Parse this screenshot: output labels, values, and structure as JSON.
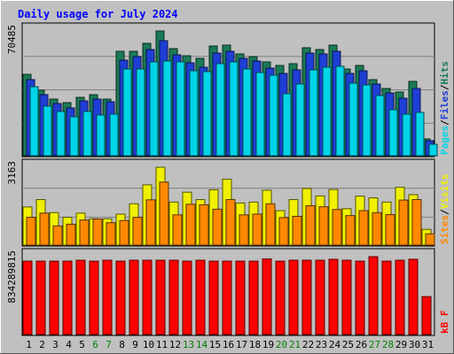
{
  "chart_data": {
    "type": "bar",
    "title": "Daily usage for July 2024",
    "days": [
      "1",
      "2",
      "3",
      "4",
      "5",
      "6",
      "7",
      "8",
      "9",
      "10",
      "11",
      "12",
      "13",
      "14",
      "15",
      "16",
      "17",
      "18",
      "19",
      "20",
      "21",
      "22",
      "23",
      "24",
      "25",
      "26",
      "27",
      "28",
      "29",
      "30",
      "31"
    ],
    "weekend_days": [
      "6",
      "7",
      "13",
      "14",
      "20",
      "21",
      "27",
      "28"
    ],
    "panels": [
      {
        "id": "hits",
        "max_label": "70485",
        "ymax": 70485,
        "legend": [
          "Pages",
          "Files",
          "Hits"
        ],
        "series": [
          {
            "name": "Hits",
            "color": "#1a7a55",
            "values": [
              46000,
              37000,
              32000,
              30000,
              33000,
              34500,
              32000,
              59000,
              59000,
              63500,
              70485,
              60500,
              56500,
              55000,
              62000,
              62500,
              57500,
              56000,
              53000,
              51000,
              52000,
              61000,
              60000,
              62500,
              49000,
              51000,
              43000,
              38000,
              36000,
              42000,
              9500
            ]
          },
          {
            "name": "Files",
            "color": "#1e3ed6",
            "values": [
              43000,
              34500,
              29500,
              27000,
              31000,
              32000,
              30500,
              54000,
              56000,
              60000,
              65000,
              57000,
              52500,
              50000,
              58000,
              59000,
              55000,
              53500,
              49500,
              46500,
              48500,
              58000,
              57500,
              59000,
              46500,
              48000,
              40500,
              35500,
              32500,
              38000,
              8500
            ]
          },
          {
            "name": "Pages",
            "color": "#00d4e8",
            "values": [
              39000,
              28000,
              25000,
              22000,
              25000,
              23000,
              23500,
              49000,
              49000,
              53000,
              53500,
              53000,
              48000,
              47500,
              52000,
              53000,
              49000,
              47000,
              45500,
              35000,
              40500,
              48500,
              50000,
              50500,
              41000,
              40000,
              34000,
              26000,
              23500,
              24500,
              6500
            ]
          }
        ]
      },
      {
        "id": "visits",
        "max_label": "3163",
        "ymax": 3163,
        "legend": [
          "Sites",
          "Visits"
        ],
        "series": [
          {
            "name": "Visits",
            "color": "#f0f000",
            "values": [
              1550,
              1850,
              1320,
              1130,
              1300,
              1070,
              1070,
              1260,
              1680,
              2450,
              3163,
              1750,
              2150,
              1850,
              2250,
              2680,
              1710,
              1750,
              2230,
              1400,
              1850,
              2300,
              2000,
              2260,
              1480,
              1990,
              1920,
              1750,
              2350,
              2050,
              640
            ]
          },
          {
            "name": "Sites",
            "color": "#ff8800",
            "values": [
              1130,
              1300,
              780,
              850,
              1020,
              1060,
              910,
              1000,
              1130,
              1840,
              2560,
              1230,
              1660,
              1640,
              1460,
              1850,
              1230,
              1260,
              1680,
              1120,
              1170,
              1600,
              1560,
              1450,
              1200,
              1400,
              1320,
              1240,
              1830,
              1850,
              460
            ]
          }
        ]
      },
      {
        "id": "kbytes",
        "max_label": "834289815",
        "ymax": 834289815,
        "legend": [
          "kB F"
        ],
        "series": [
          {
            "name": "kB F",
            "color": "#ff0000",
            "values": [
              786000000,
              786000000,
              786000000,
              786000000,
              796000000,
              786000000,
              796000000,
              786000000,
              796000000,
              796000000,
              796000000,
              796000000,
              786000000,
              796000000,
              786000000,
              786000000,
              786000000,
              786000000,
              810000000,
              786000000,
              796000000,
              796000000,
              796000000,
              806000000,
              796000000,
              786000000,
              834289815,
              786000000,
              796000000,
              806000000,
              406000000
            ]
          }
        ]
      }
    ]
  }
}
